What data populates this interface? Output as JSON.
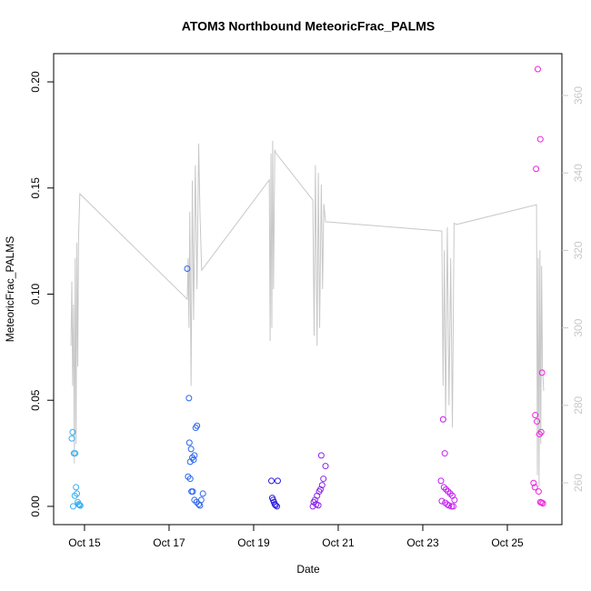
{
  "chart_data": {
    "type": "scatter",
    "title": "ATOM3 Northbound MeteoricFrac_PALMS",
    "xlabel": "Date",
    "ylabel": "MeteoricFrac_PALMS",
    "xlim": [
      14.27,
      26.29
    ],
    "ylim": [
      -0.0086,
      0.2133
    ],
    "y2lim": [
      249.2,
      370.8
    ],
    "xticks": [
      {
        "value": 15,
        "label": "Oct 15"
      },
      {
        "value": 17,
        "label": "Oct 17"
      },
      {
        "value": 19,
        "label": "Oct 19"
      },
      {
        "value": 21,
        "label": "Oct 21"
      },
      {
        "value": 23,
        "label": "Oct 23"
      },
      {
        "value": 25,
        "label": "Oct 25"
      }
    ],
    "yticks": [
      {
        "value": 0,
        "label": "0.00"
      },
      {
        "value": 0.05,
        "label": "0.05"
      },
      {
        "value": 0.1,
        "label": "0.10"
      },
      {
        "value": 0.15,
        "label": "0.15"
      },
      {
        "value": 0.2,
        "label": "0.20"
      }
    ],
    "y2ticks": [
      260,
      280,
      300,
      320,
      340,
      360
    ],
    "series": [
      {
        "color": "#35aef2",
        "x": [
          14.7,
          14.72,
          14.75,
          14.78,
          14.8,
          14.82,
          14.84,
          14.86,
          14.88,
          14.9,
          14.73,
          14.77
        ],
        "values": [
          0.032,
          0.035,
          0.025,
          0.025,
          0.009,
          0.006,
          0.002,
          0.001,
          0.0007,
          0.0004,
          0.0,
          0.005
        ]
      },
      {
        "color": "#2a66ee",
        "x": [
          17.43,
          17.47,
          17.48,
          17.52,
          17.5,
          17.55,
          17.58,
          17.6,
          17.63,
          17.66,
          17.45,
          17.5,
          17.53,
          17.56,
          17.6,
          17.65,
          17.7,
          17.73,
          17.76,
          17.8
        ],
        "values": [
          0.112,
          0.051,
          0.03,
          0.027,
          0.021,
          0.023,
          0.022,
          0.024,
          0.037,
          0.038,
          0.014,
          0.013,
          0.007,
          0.007,
          0.003,
          0.002,
          0.001,
          0.0004,
          0.003,
          0.006
        ]
      },
      {
        "color": "#2c1ee0",
        "x": [
          19.42,
          19.57,
          19.44,
          19.46,
          19.48,
          19.5,
          19.52,
          19.55
        ],
        "values": [
          0.012,
          0.012,
          0.004,
          0.003,
          0.002,
          0.001,
          0.0005,
          0.0
        ]
      },
      {
        "color": "#8a22ee",
        "x": [
          20.6,
          20.7,
          20.65,
          20.62,
          20.58,
          20.55,
          20.5,
          20.45,
          20.42,
          20.48,
          20.53,
          20.4
        ],
        "values": [
          0.024,
          0.019,
          0.013,
          0.01,
          0.008,
          0.007,
          0.005,
          0.003,
          0.002,
          0.001,
          0.0005,
          0.0
        ]
      },
      {
        "color": "#c21eee",
        "x": [
          23.48,
          23.52,
          23.43,
          23.5,
          23.55,
          23.6,
          23.65,
          23.7,
          23.75,
          23.45,
          23.53,
          23.58,
          23.62,
          23.68,
          23.72
        ],
        "values": [
          0.041,
          0.025,
          0.012,
          0.009,
          0.008,
          0.007,
          0.006,
          0.005,
          0.003,
          0.0025,
          0.0017,
          0.0009,
          0.0004,
          0.0,
          0.0
        ]
      },
      {
        "color": "#ee22dd",
        "x": [
          25.72,
          25.78,
          25.68,
          25.82,
          25.66,
          25.7,
          25.76,
          25.8,
          25.62,
          25.65,
          25.74,
          25.78,
          25.81,
          25.84
        ],
        "values": [
          0.206,
          0.173,
          0.159,
          0.063,
          0.043,
          0.04,
          0.034,
          0.035,
          0.011,
          0.009,
          0.007,
          0.002,
          0.0018,
          0.0014
        ]
      }
    ],
    "line": {
      "axis": "y2",
      "color": "#c8c8c8",
      "x": [
        14.68,
        14.7,
        14.72,
        14.74,
        14.76,
        14.78,
        14.8,
        14.82,
        14.84,
        14.86,
        14.89,
        17.43,
        17.45,
        17.47,
        17.49,
        17.52,
        17.55,
        17.58,
        17.62,
        17.66,
        17.7,
        17.73,
        17.77,
        19.37,
        19.39,
        19.41,
        19.43,
        19.45,
        19.47,
        19.5,
        19.52,
        20.4,
        20.43,
        20.46,
        20.5,
        20.53,
        20.56,
        20.6,
        20.63,
        20.66,
        20.7,
        23.45,
        23.48,
        23.51,
        23.54,
        23.58,
        23.62,
        23.66,
        23.7,
        23.74,
        23.8,
        25.69,
        25.71,
        25.73,
        25.75,
        25.77,
        25.79,
        25.81,
        25.83,
        25.86
      ],
      "values": [
        295.4,
        312,
        285,
        306,
        265,
        318,
        270,
        322,
        290,
        324,
        334.6,
        307.4,
        318,
        300,
        330,
        285,
        338,
        302,
        342,
        310,
        347.6,
        330,
        314.9,
        338.2,
        296.6,
        345,
        300,
        348.3,
        310,
        346,
        345.2,
        333,
        298,
        342,
        295.4,
        340,
        300,
        337,
        310,
        332,
        327.4,
        325,
        285,
        320,
        276,
        326,
        280,
        318,
        274.3,
        327,
        326.7,
        331.8,
        262,
        318,
        259,
        320,
        270,
        316,
        290,
        283.7
      ]
    }
  }
}
